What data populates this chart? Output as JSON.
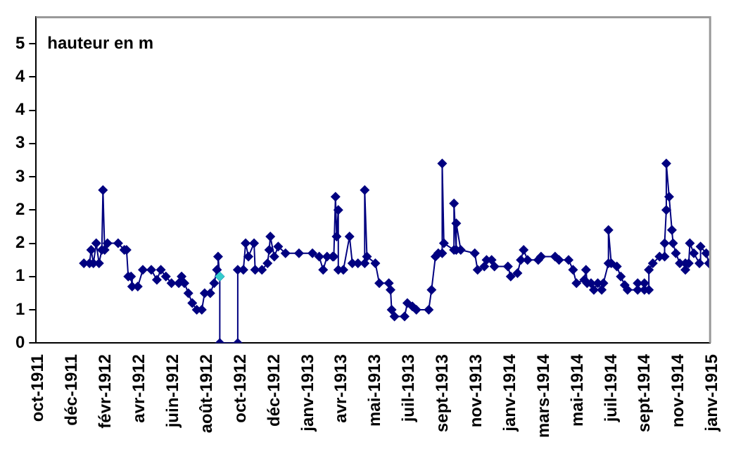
{
  "chart_data": {
    "type": "line",
    "ylabel": "hauteur en m",
    "marker": "diamond",
    "grid": false,
    "legend": false,
    "xlim": [
      "1911-10-09",
      "1915-01-21"
    ],
    "xticks": [
      {
        "value": "1911-10-09",
        "label": "oct-1911"
      },
      {
        "value": "1911-12-08",
        "label": "déc-1911"
      },
      {
        "value": "1912-02-06",
        "label": "févr-1912"
      },
      {
        "value": "1912-04-06",
        "label": "avr-1912"
      },
      {
        "value": "1912-06-05",
        "label": "juin-1912"
      },
      {
        "value": "1912-08-04",
        "label": "août-1912"
      },
      {
        "value": "1912-10-03",
        "label": "oct-1912"
      },
      {
        "value": "1912-12-02",
        "label": "déc-1912"
      },
      {
        "value": "1913-01-31",
        "label": "janv-1913"
      },
      {
        "value": "1913-04-01",
        "label": "avr-1913"
      },
      {
        "value": "1913-05-31",
        "label": "mai-1913"
      },
      {
        "value": "1913-07-30",
        "label": "juil-1913"
      },
      {
        "value": "1913-09-28",
        "label": "sept-1913"
      },
      {
        "value": "1913-11-27",
        "label": "nov-1913"
      },
      {
        "value": "1914-01-26",
        "label": "janv-1914"
      },
      {
        "value": "1914-03-27",
        "label": "mars-1914"
      },
      {
        "value": "1914-05-26",
        "label": "mai-1914"
      },
      {
        "value": "1914-07-25",
        "label": "juil-1914"
      },
      {
        "value": "1914-09-23",
        "label": "sept-1914"
      },
      {
        "value": "1914-11-22",
        "label": "nov-1914"
      },
      {
        "value": "1915-01-21",
        "label": "janv-1915"
      }
    ],
    "ylim": [
      0,
      4.9
    ],
    "yticks": [
      0,
      {
        "value": 0.5,
        "label": "1"
      },
      1,
      {
        "value": 1.5,
        "label": "2"
      },
      2,
      {
        "value": 2.5,
        "label": "3"
      },
      3,
      {
        "value": 3.5,
        "label": "4"
      },
      4,
      {
        "value": 4.5,
        "label": "5"
      }
    ],
    "series": [
      {
        "color": "#000080",
        "x": [
          "1912-01-02",
          "1912-01-12",
          "1912-01-15",
          "1912-01-19",
          "1912-01-24",
          "1912-01-29",
          "1912-02-03",
          "1912-02-05",
          "1912-02-08",
          "1912-02-13",
          "1912-03-03",
          "1912-03-14",
          "1912-03-18",
          "1912-03-21",
          "1912-03-26",
          "1912-03-28",
          "1912-04-07",
          "1912-04-16",
          "1912-05-01",
          "1912-05-11",
          "1912-05-18",
          "1912-05-27",
          "1912-06-06",
          "1912-06-19",
          "1912-06-24",
          "1912-06-29",
          "1912-07-06",
          "1912-07-13",
          "1912-07-21",
          "1912-07-30",
          "1912-08-04",
          "1912-08-14",
          "1912-08-21",
          "1912-08-26",
          "1912-08-28",
          "1912-08-31",
          "1912-08-31",
          "1912-10-02",
          "1912-10-02",
          "1912-10-12",
          "1912-10-16",
          "1912-10-21",
          "1912-10-31",
          "1912-11-02",
          "1912-11-14",
          "1912-11-24",
          "1912-11-27",
          "1912-11-29",
          "1912-12-06",
          "1912-12-13",
          "1912-12-26",
          "1913-01-19",
          "1913-02-12",
          "1913-02-24",
          "1913-03-03",
          "1913-03-10",
          "1913-03-20",
          "1913-03-22",
          "1913-03-25",
          "1913-03-27",
          "1913-03-30",
          "1913-03-30",
          "1913-04-08",
          "1913-04-19",
          "1913-04-24",
          "1913-05-04",
          "1913-05-16",
          "1913-05-16",
          "1913-05-20",
          "1913-06-04",
          "1913-06-11",
          "1913-06-28",
          "1913-07-01",
          "1913-07-03",
          "1913-07-08",
          "1913-07-26",
          "1913-07-31",
          "1913-08-09",
          "1913-08-16",
          "1913-09-07",
          "1913-09-12",
          "1913-09-19",
          "1913-09-24",
          "1913-10-01",
          "1913-10-01",
          "1913-10-04",
          "1913-10-22",
          "1913-10-22",
          "1913-10-26",
          "1913-10-26",
          "1913-11-03",
          "1913-11-28",
          "1913-12-03",
          "1913-12-15",
          "1913-12-19",
          "1913-12-28",
          "1914-01-02",
          "1914-01-26",
          "1914-01-31",
          "1914-02-12",
          "1914-02-18",
          "1914-02-23",
          "1914-03-02",
          "1914-03-21",
          "1914-03-26",
          "1914-04-20",
          "1914-04-27",
          "1914-05-14",
          "1914-05-22",
          "1914-05-28",
          "1914-06-11",
          "1914-06-14",
          "1914-06-16",
          "1914-06-23",
          "1914-06-28",
          "1914-07-05",
          "1914-07-12",
          "1914-07-15",
          "1914-07-24",
          "1914-07-24",
          "1914-07-29",
          "1914-08-08",
          "1914-08-15",
          "1914-08-22",
          "1914-08-27",
          "1914-09-14",
          "1914-09-14",
          "1914-09-26",
          "1914-09-26",
          "1914-10-04",
          "1914-10-04",
          "1914-10-11",
          "1914-10-23",
          "1914-11-01",
          "1914-11-01",
          "1914-11-04",
          "1914-11-04",
          "1914-11-09",
          "1914-11-14",
          "1914-11-16",
          "1914-11-21",
          "1914-11-28",
          "1914-12-08",
          "1914-12-08",
          "1914-12-14",
          "1914-12-16",
          "1914-12-23",
          "1915-01-02",
          "1915-01-04",
          "1915-01-14",
          "1915-01-19"
        ],
        "values": [
          1.2,
          1.2,
          1.4,
          1.2,
          1.5,
          1.2,
          1.4,
          2.3,
          1.4,
          1.5,
          1.5,
          1.4,
          1.4,
          1.0,
          1.0,
          0.85,
          0.85,
          1.1,
          1.1,
          0.95,
          1.1,
          1.0,
          0.9,
          0.9,
          1.0,
          0.9,
          0.75,
          0.6,
          0.5,
          0.5,
          0.75,
          0.75,
          0.9,
          1.1,
          1.3,
          1.0,
          0,
          0,
          1.1,
          1.1,
          1.5,
          1.3,
          1.5,
          1.1,
          1.1,
          1.2,
          1.4,
          1.6,
          1.3,
          1.45,
          1.35,
          1.35,
          1.35,
          1.3,
          1.1,
          1.3,
          1.3,
          1.3,
          2.2,
          1.6,
          2.0,
          1.1,
          1.1,
          1.6,
          1.2,
          1.2,
          1.2,
          2.3,
          1.3,
          1.2,
          0.9,
          0.9,
          0.8,
          0.5,
          0.4,
          0.4,
          0.6,
          0.55,
          0.5,
          0.5,
          0.8,
          1.3,
          1.35,
          1.35,
          2.7,
          1.5,
          1.4,
          2.1,
          1.4,
          1.8,
          1.4,
          1.35,
          1.1,
          1.15,
          1.25,
          1.25,
          1.15,
          1.15,
          1.0,
          1.05,
          1.25,
          1.4,
          1.25,
          1.25,
          1.3,
          1.3,
          1.25,
          1.25,
          1.1,
          0.9,
          0.95,
          1.1,
          0.9,
          0.9,
          0.8,
          0.9,
          0.8,
          0.9,
          1.2,
          1.7,
          1.2,
          1.15,
          1.0,
          0.87,
          0.8,
          0.8,
          0.9,
          0.9,
          0.8,
          0.8,
          1.1,
          1.2,
          1.3,
          1.3,
          1.5,
          2.0,
          2.7,
          2.2,
          1.7,
          1.5,
          1.35,
          1.2,
          1.2,
          1.1,
          1.2,
          1.5,
          1.35,
          1.2,
          1.45,
          1.35,
          1.2
        ]
      },
      {
        "type": "scatter",
        "color": "#33cccc",
        "x": [
          "1912-08-31"
        ],
        "values": [
          1.0
        ]
      }
    ]
  }
}
